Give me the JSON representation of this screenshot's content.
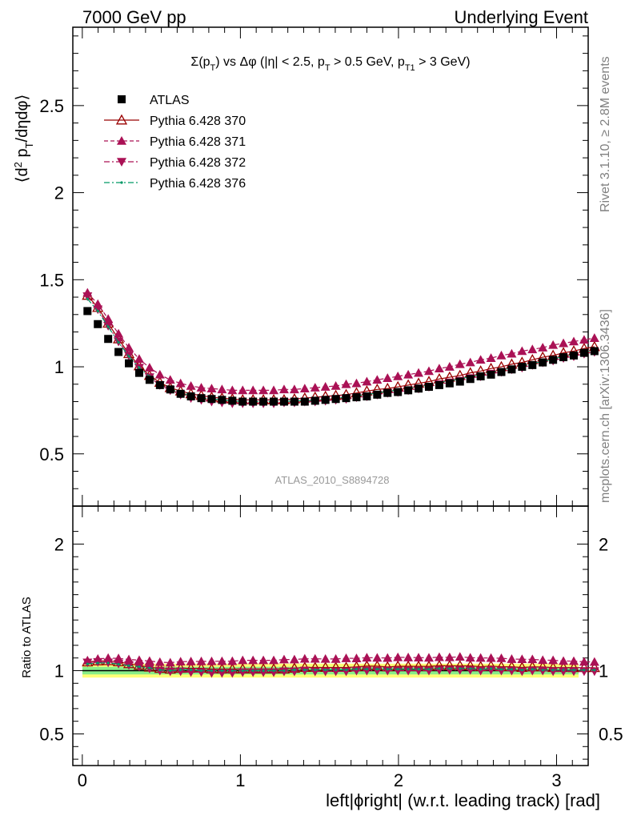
{
  "header": {
    "left": "7000 GeV pp",
    "right": "Underlying Event",
    "side_top": "Rivet 3.1.10, ≥ 2.8M events",
    "side_bottom": "mcplots.cern.ch [arXiv:1306.3436]",
    "watermark": "ATLAS_2010_S8894728"
  },
  "chart_data": [
    {
      "type": "scatter",
      "panel": "main",
      "title": "Σ(p_T) vs Δφ (|η| < 2.5, p_T > 0.5 GeV, p_T1 > 3 GeV)",
      "title_parts": {
        "a": "Σ(p",
        "a_sub": "T",
        "b": ") vs Δφ (|η| < 2.5, p",
        "b_sub": "T",
        "c": " > 0.5 GeV, p",
        "c_sub": "T1",
        "d": " > 3 GeV)"
      },
      "ylabel": "⟨d² p_T/dηdφ⟩",
      "ylabel_parts": {
        "a": "⟨d",
        "sup": "2",
        "b": " p",
        "sub": "T",
        "c": "/dηdφ⟩"
      },
      "xlim": [
        -0.06,
        3.2
      ],
      "ylim": [
        0.2,
        2.95
      ],
      "yticks": [
        "0.5",
        "1",
        "1.5",
        "2",
        "2.5"
      ],
      "ytick_values": [
        0.5,
        1,
        1.5,
        2,
        2.5
      ],
      "legend_position": "top-left",
      "x_bin_start": 0.0327,
      "x_bin_width": 0.06545,
      "series": [
        {
          "name": "ATLAS",
          "color": "#000000",
          "marker": "square",
          "line": "none",
          "values": [
            1.32,
            1.245,
            1.16,
            1.085,
            1.02,
            0.965,
            0.925,
            0.895,
            0.87,
            0.845,
            0.83,
            0.82,
            0.815,
            0.81,
            0.805,
            0.8,
            0.8,
            0.8,
            0.8,
            0.8,
            0.8,
            0.8,
            0.805,
            0.81,
            0.815,
            0.82,
            0.825,
            0.83,
            0.84,
            0.85,
            0.855,
            0.865,
            0.875,
            0.885,
            0.895,
            0.905,
            0.915,
            0.93,
            0.945,
            0.955,
            0.97,
            0.985,
            1.0,
            1.01,
            1.025,
            1.04,
            1.055,
            1.065,
            1.08,
            1.09
          ]
        },
        {
          "name": "Pythia 6.428 370",
          "color": "#990000",
          "marker": "triangle-open",
          "line": "solid",
          "values": [
            1.41,
            1.34,
            1.25,
            1.16,
            1.075,
            1.005,
            0.95,
            0.91,
            0.88,
            0.86,
            0.845,
            0.835,
            0.825,
            0.82,
            0.815,
            0.81,
            0.81,
            0.81,
            0.81,
            0.81,
            0.815,
            0.82,
            0.825,
            0.83,
            0.835,
            0.84,
            0.85,
            0.86,
            0.87,
            0.875,
            0.885,
            0.895,
            0.905,
            0.915,
            0.93,
            0.94,
            0.95,
            0.965,
            0.975,
            0.99,
            1.0,
            1.015,
            1.025,
            1.04,
            1.055,
            1.065,
            1.08,
            1.09,
            1.105,
            1.115
          ]
        },
        {
          "name": "Pythia 6.428 371",
          "color": "#aa1155",
          "marker": "triangle-up",
          "line": "dashed",
          "values": [
            1.425,
            1.36,
            1.275,
            1.19,
            1.11,
            1.045,
            0.995,
            0.955,
            0.925,
            0.905,
            0.89,
            0.88,
            0.875,
            0.87,
            0.865,
            0.865,
            0.865,
            0.865,
            0.865,
            0.87,
            0.87,
            0.875,
            0.88,
            0.885,
            0.89,
            0.9,
            0.905,
            0.915,
            0.925,
            0.935,
            0.945,
            0.955,
            0.965,
            0.975,
            0.99,
            1.0,
            1.015,
            1.025,
            1.04,
            1.05,
            1.065,
            1.075,
            1.09,
            1.1,
            1.11,
            1.125,
            1.135,
            1.145,
            1.155,
            1.165
          ]
        },
        {
          "name": "Pythia 6.428 372",
          "color": "#aa1155",
          "marker": "triangle-down",
          "line": "dashdot",
          "values": [
            1.405,
            1.33,
            1.235,
            1.145,
            1.065,
            0.995,
            0.94,
            0.895,
            0.865,
            0.84,
            0.82,
            0.81,
            0.8,
            0.795,
            0.79,
            0.79,
            0.79,
            0.79,
            0.79,
            0.795,
            0.795,
            0.8,
            0.8,
            0.805,
            0.81,
            0.815,
            0.825,
            0.83,
            0.84,
            0.85,
            0.855,
            0.865,
            0.875,
            0.885,
            0.9,
            0.91,
            0.92,
            0.935,
            0.945,
            0.96,
            0.97,
            0.985,
            0.995,
            1.01,
            1.025,
            1.035,
            1.05,
            1.06,
            1.075,
            1.085
          ]
        },
        {
          "name": "Pythia 6.428 376",
          "color": "#009966",
          "marker": "dot",
          "line": "dashdot",
          "values": [
            1.39,
            1.32,
            1.23,
            1.14,
            1.06,
            0.995,
            0.945,
            0.9,
            0.87,
            0.85,
            0.835,
            0.82,
            0.815,
            0.81,
            0.805,
            0.8,
            0.8,
            0.8,
            0.8,
            0.8,
            0.805,
            0.805,
            0.81,
            0.815,
            0.82,
            0.825,
            0.835,
            0.84,
            0.85,
            0.86,
            0.865,
            0.875,
            0.885,
            0.895,
            0.91,
            0.92,
            0.93,
            0.945,
            0.955,
            0.97,
            0.98,
            0.995,
            1.005,
            1.02,
            1.03,
            1.045,
            1.06,
            1.07,
            1.085,
            1.095
          ]
        }
      ]
    },
    {
      "type": "scatter",
      "panel": "ratio",
      "ylabel": "Ratio to ATLAS",
      "xlabel": "left|ϕright| (w.r.t. leading track) [rad]",
      "xlim": [
        -0.06,
        3.2
      ],
      "ylim": [
        0.25,
        2.3
      ],
      "xticks": [
        "0",
        "1",
        "2",
        "3"
      ],
      "xtick_values": [
        0,
        1,
        2,
        3
      ],
      "yticks": [
        "0.5",
        "1",
        "2"
      ],
      "ytick_values": [
        0.5,
        1,
        2
      ],
      "bands": [
        {
          "name": "total uncertainty",
          "color": "#ffff77",
          "lo": 0.945,
          "hi": 1.055
        },
        {
          "name": "statistical uncertainty",
          "color": "#88ee88",
          "lo": 0.97,
          "hi": 1.03
        }
      ],
      "reference": 1.0
    }
  ]
}
